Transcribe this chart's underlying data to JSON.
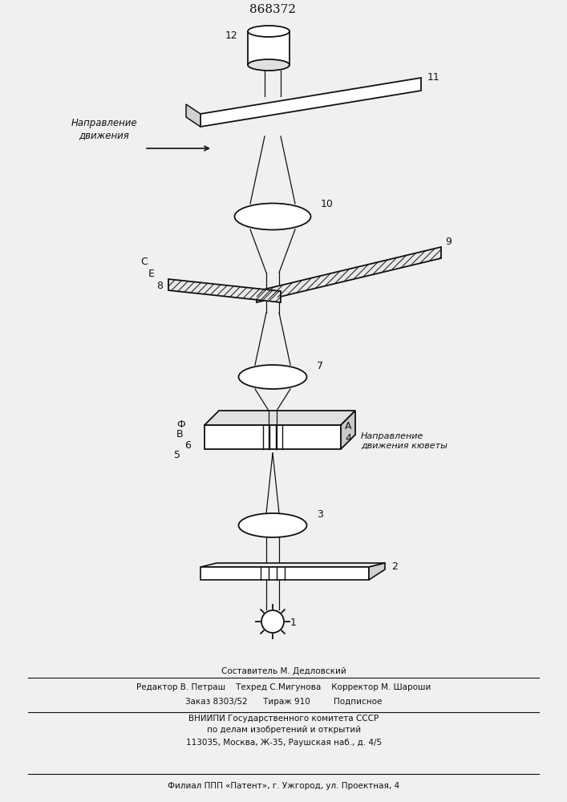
{
  "title": "868372",
  "bg_color": "#f0f0f0",
  "footer_lines": [
    "Составитель М. Дедловский",
    "Редактор В. Петраш    Техред С.Мигунова    Корректор М. Шароши",
    "Заказ 8303/52      Тираж 910         Подписное",
    "ВНИИПИ Государственного комитета СССР",
    "по делам изобретений и открытий",
    "113035, Москва, Ж-35, Раушская наб., д. 4/5",
    "Филиал ППП «Патент», г. Ужгород, ул. Проектная, 4"
  ]
}
